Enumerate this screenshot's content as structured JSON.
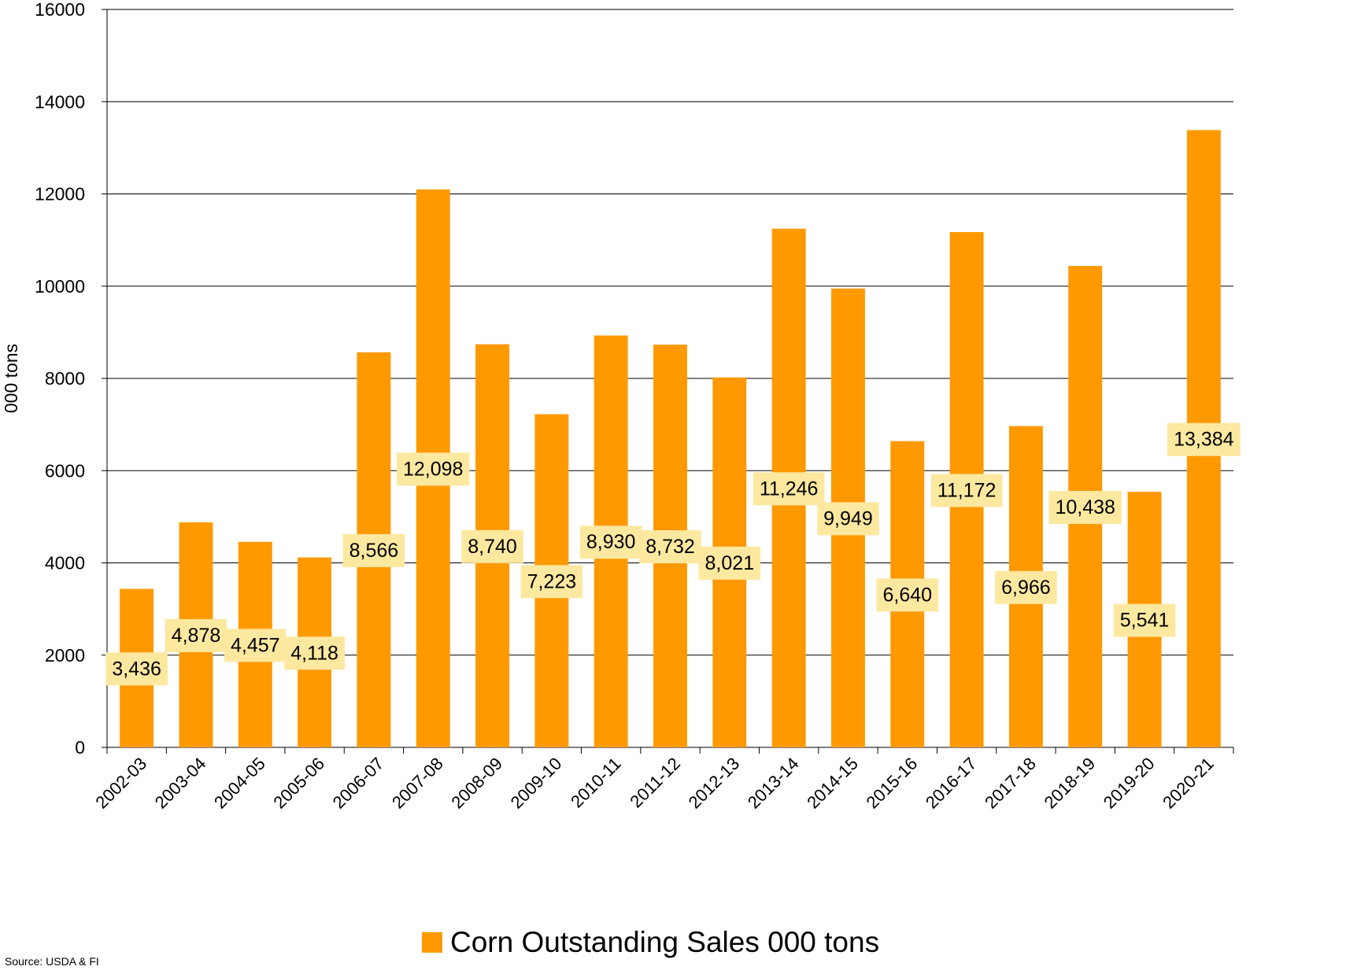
{
  "chart_data": {
    "type": "bar",
    "title": "",
    "xlabel": "",
    "ylabel": "000 tons",
    "ylim": [
      0,
      16000
    ],
    "yticks": [
      0,
      2000,
      4000,
      6000,
      8000,
      10000,
      12000,
      14000,
      16000
    ],
    "grid": "horizontal",
    "legend_position": "bottom",
    "categories": [
      "2002-03",
      "2003-04",
      "2004-05",
      "2005-06",
      "2006-07",
      "2007-08",
      "2008-09",
      "2009-10",
      "2010-11",
      "2011-12",
      "2012-13",
      "2013-14",
      "2014-15",
      "2015-16",
      "2016-17",
      "2017-18",
      "2018-19",
      "2019-20",
      "2020-21"
    ],
    "series": [
      {
        "name": "Corn Outstanding Sales 000 tons",
        "values": [
          3436,
          4878,
          4457,
          4118,
          8566,
          12098,
          8740,
          7223,
          8930,
          8732,
          8021,
          11246,
          9949,
          6640,
          11172,
          6966,
          10438,
          5541,
          13384
        ],
        "labels": [
          "3,436",
          "4,878",
          "4,457",
          "4,118",
          "8,566",
          "12,098",
          "8,740",
          "7,223",
          "8,930",
          "8,732",
          "8,021",
          "11,246",
          "9,949",
          "6,640",
          "11,172",
          "6,966",
          "10,438",
          "5,541",
          "13,384"
        ]
      }
    ]
  },
  "colors": {
    "bar": "#FF9900",
    "label_bg": "#FDE8A0",
    "grid": "#000000"
  },
  "source_note": "Source: USDA & FI"
}
